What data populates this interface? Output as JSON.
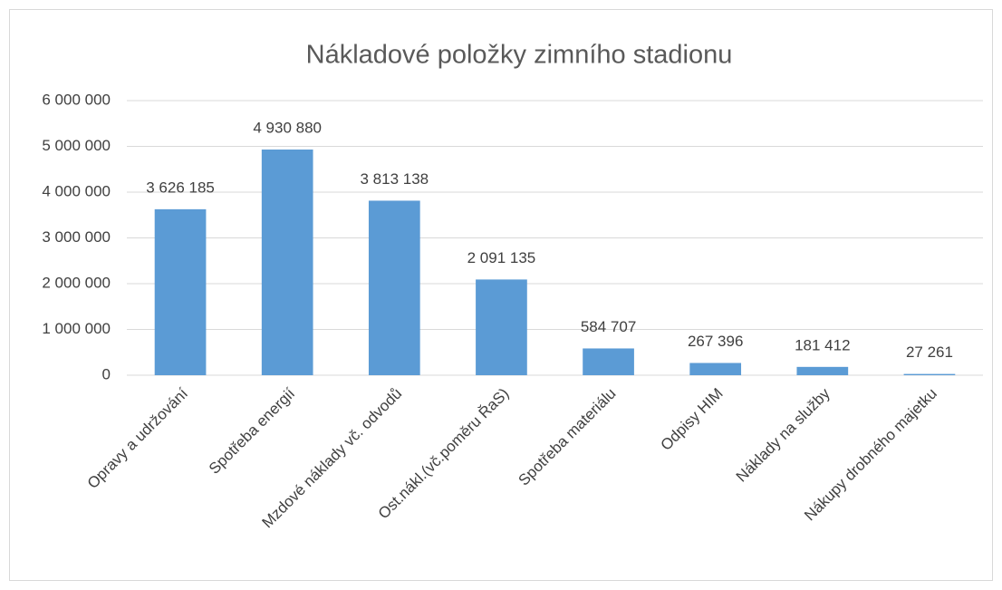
{
  "chart_data": {
    "type": "bar",
    "title": "Nákladové položky zimního stadionu",
    "categories": [
      "Opravy a udržování",
      "Spotřeba energií",
      "Mzdové náklady vč. odvodů",
      "Ost.nákl.(vč.poměru ŘaS)",
      "Spotřeba materiálu",
      "Odpisy HIM",
      "Náklady na služby",
      "Nákupy drobného majetku"
    ],
    "values": [
      3626185,
      4930880,
      3813138,
      2091135,
      584707,
      267396,
      181412,
      27261
    ],
    "value_labels": [
      "3 626 185",
      "4 930 880",
      "3 813 138",
      "2 091 135",
      "584 707",
      "267 396",
      "181 412",
      "27 261"
    ],
    "color": "#5b9bd5",
    "ylim": [
      0,
      6000000
    ],
    "yticks": [
      0,
      {
        "value": 1000000,
        "label": "1 000 000"
      },
      {
        "value": 2000000,
        "label": "2 000 000"
      },
      {
        "value": 3000000,
        "label": "3 000 000"
      },
      {
        "value": 4000000,
        "label": "4 000 000"
      },
      {
        "value": 5000000,
        "label": "5 000 000"
      },
      {
        "value": 6000000,
        "label": "6 000 000"
      }
    ],
    "grid": true
  }
}
